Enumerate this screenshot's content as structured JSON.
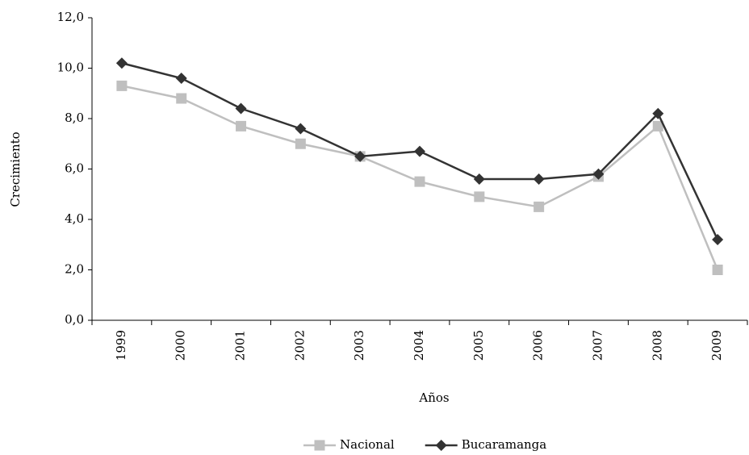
{
  "chart_data": {
    "type": "line",
    "x_label": "Años",
    "y_label": "Crecimiento",
    "categories": [
      "1999",
      "2000",
      "2001",
      "2002",
      "2003",
      "2004",
      "2005",
      "2006",
      "2007",
      "2008",
      "2009"
    ],
    "series": [
      {
        "name": "Nacional",
        "color": "#bfbfbf",
        "marker": "square",
        "values": [
          9.3,
          8.8,
          7.7,
          7.0,
          6.5,
          5.5,
          4.9,
          4.5,
          5.7,
          7.7,
          2.0
        ]
      },
      {
        "name": "Bucaramanga",
        "color": "#333333",
        "marker": "diamond",
        "values": [
          10.2,
          9.6,
          8.4,
          7.6,
          6.5,
          6.7,
          5.6,
          5.6,
          5.8,
          8.2,
          3.2
        ]
      }
    ],
    "ylim": [
      0,
      12
    ],
    "yticks": [
      {
        "value": 0,
        "label": "0,0"
      },
      {
        "value": 2,
        "label": "2,0"
      },
      {
        "value": 4,
        "label": "4,0"
      },
      {
        "value": 6,
        "label": "6,0"
      },
      {
        "value": 8,
        "label": "8,0"
      },
      {
        "value": 10,
        "label": "10,0"
      },
      {
        "value": 12,
        "label": "12,0"
      }
    ],
    "grid": false,
    "legend": "bottom"
  }
}
